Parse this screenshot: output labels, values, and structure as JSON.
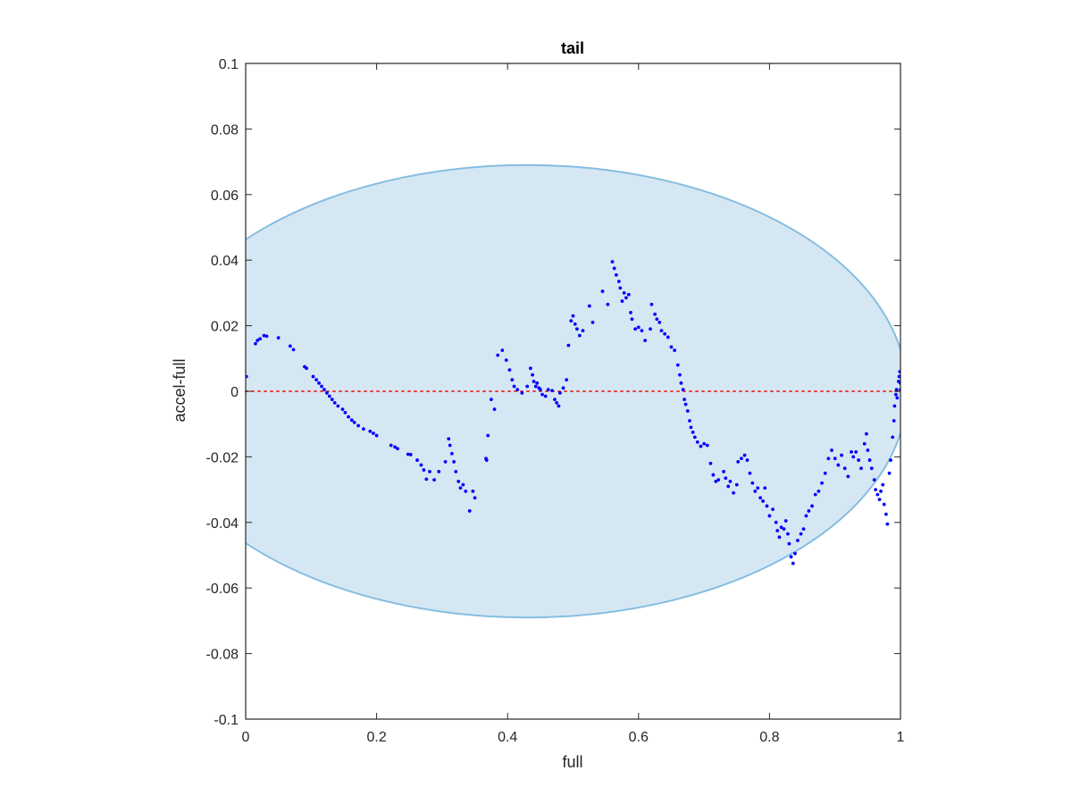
{
  "chart_data": {
    "type": "scatter",
    "title": "tail",
    "xlabel": "full",
    "ylabel": "accel-full",
    "xlim": [
      0,
      1
    ],
    "ylim": [
      -0.1,
      0.1
    ],
    "x_ticks": [
      0,
      0.2,
      0.4,
      0.6,
      0.8,
      1
    ],
    "x_tick_labels": [
      "0",
      "0.2",
      "0.4",
      "0.6",
      "0.8",
      "1"
    ],
    "y_ticks": [
      -0.1,
      -0.08,
      -0.06,
      -0.04,
      -0.02,
      0,
      0.02,
      0.04,
      0.06,
      0.08,
      0.1
    ],
    "y_tick_labels": [
      "-0.1",
      "-0.08",
      "-0.06",
      "-0.04",
      "-0.02",
      "0",
      "0.02",
      "0.04",
      "0.06",
      "0.08",
      "0.1"
    ],
    "grid": false,
    "reference_line": {
      "y": 0,
      "style": "dotted",
      "color": "#e8413a"
    },
    "ellipse": {
      "cx": 0.43,
      "cy": 0,
      "rx": 0.58,
      "ry": 0.069,
      "fill": "#d6e7f4",
      "stroke": "#85bde0"
    },
    "series": [
      {
        "color": "#0000ff",
        "points": [
          [
            0.001,
            0.0045
          ],
          [
            0.015,
            0.0145
          ],
          [
            0.018,
            0.0155
          ],
          [
            0.022,
            0.016
          ],
          [
            0.028,
            0.017
          ],
          [
            0.032,
            0.0168
          ],
          [
            0.05,
            0.0163
          ],
          [
            0.068,
            0.0138
          ],
          [
            0.073,
            0.0127
          ],
          [
            0.09,
            0.0075
          ],
          [
            0.093,
            0.007
          ],
          [
            0.103,
            0.0045
          ],
          [
            0.108,
            0.0035
          ],
          [
            0.112,
            0.0025
          ],
          [
            0.116,
            0.0015
          ],
          [
            0.12,
            0.0005
          ],
          [
            0.124,
            -0.0005
          ],
          [
            0.128,
            -0.0015
          ],
          [
            0.132,
            -0.0025
          ],
          [
            0.136,
            -0.0035
          ],
          [
            0.141,
            -0.0045
          ],
          [
            0.148,
            -0.0055
          ],
          [
            0.152,
            -0.0065
          ],
          [
            0.157,
            -0.0078
          ],
          [
            0.162,
            -0.0088
          ],
          [
            0.166,
            -0.0095
          ],
          [
            0.172,
            -0.0105
          ],
          [
            0.18,
            -0.0115
          ],
          [
            0.19,
            -0.0122
          ],
          [
            0.195,
            -0.0128
          ],
          [
            0.2,
            -0.0135
          ],
          [
            0.222,
            -0.0165
          ],
          [
            0.228,
            -0.017
          ],
          [
            0.232,
            -0.0175
          ],
          [
            0.248,
            -0.0192
          ],
          [
            0.252,
            -0.0193
          ],
          [
            0.262,
            -0.021
          ],
          [
            0.268,
            -0.0225
          ],
          [
            0.272,
            -0.024
          ],
          [
            0.276,
            -0.0268
          ],
          [
            0.281,
            -0.0245
          ],
          [
            0.288,
            -0.027
          ],
          [
            0.295,
            -0.0245
          ],
          [
            0.305,
            -0.0215
          ],
          [
            0.31,
            -0.0145
          ],
          [
            0.312,
            -0.0165
          ],
          [
            0.315,
            -0.019
          ],
          [
            0.318,
            -0.0215
          ],
          [
            0.321,
            -0.0245
          ],
          [
            0.325,
            -0.0275
          ],
          [
            0.328,
            -0.0295
          ],
          [
            0.332,
            -0.0285
          ],
          [
            0.336,
            -0.0305
          ],
          [
            0.342,
            -0.0365
          ],
          [
            0.347,
            -0.0305
          ],
          [
            0.35,
            -0.0325
          ],
          [
            0.367,
            -0.0205
          ],
          [
            0.368,
            -0.021
          ],
          [
            0.37,
            -0.0135
          ],
          [
            0.375,
            -0.0025
          ],
          [
            0.38,
            -0.0055
          ],
          [
            0.385,
            0.011
          ],
          [
            0.392,
            0.0125
          ],
          [
            0.398,
            0.0095
          ],
          [
            0.403,
            0.0065
          ],
          [
            0.407,
            0.0035
          ],
          [
            0.41,
            0.0015
          ],
          [
            0.415,
            0.0005
          ],
          [
            0.422,
            -0.0005
          ],
          [
            0.43,
            0.0015
          ],
          [
            0.435,
            0.007
          ],
          [
            0.438,
            0.005
          ],
          [
            0.44,
            0.003
          ],
          [
            0.443,
            0.0015
          ],
          [
            0.445,
            0.0025
          ],
          [
            0.448,
            0.001
          ],
          [
            0.45,
            0.0005
          ],
          [
            0.453,
            -0.001
          ],
          [
            0.458,
            -0.0015
          ],
          [
            0.462,
            0.0005
          ],
          [
            0.468,
            0.0002
          ],
          [
            0.472,
            -0.0025
          ],
          [
            0.475,
            -0.0035
          ],
          [
            0.478,
            -0.0045
          ],
          [
            0.48,
            -0.0005
          ],
          [
            0.485,
            0.001
          ],
          [
            0.49,
            0.0035
          ],
          [
            0.493,
            0.014
          ],
          [
            0.497,
            0.0215
          ],
          [
            0.5,
            0.023
          ],
          [
            0.503,
            0.0205
          ],
          [
            0.506,
            0.019
          ],
          [
            0.51,
            0.017
          ],
          [
            0.515,
            0.0185
          ],
          [
            0.525,
            0.026
          ],
          [
            0.53,
            0.021
          ],
          [
            0.545,
            0.0305
          ],
          [
            0.553,
            0.0265
          ],
          [
            0.56,
            0.0395
          ],
          [
            0.563,
            0.0375
          ],
          [
            0.566,
            0.0355
          ],
          [
            0.57,
            0.0335
          ],
          [
            0.572,
            0.0315
          ],
          [
            0.575,
            0.0275
          ],
          [
            0.578,
            0.03
          ],
          [
            0.581,
            0.0285
          ],
          [
            0.585,
            0.0295
          ],
          [
            0.588,
            0.024
          ],
          [
            0.59,
            0.022
          ],
          [
            0.595,
            0.019
          ],
          [
            0.6,
            0.0195
          ],
          [
            0.605,
            0.0185
          ],
          [
            0.61,
            0.0155
          ],
          [
            0.618,
            0.019
          ],
          [
            0.62,
            0.0265
          ],
          [
            0.625,
            0.0235
          ],
          [
            0.628,
            0.022
          ],
          [
            0.632,
            0.021
          ],
          [
            0.635,
            0.0185
          ],
          [
            0.64,
            0.0175
          ],
          [
            0.645,
            0.0165
          ],
          [
            0.65,
            0.0135
          ],
          [
            0.655,
            0.0125
          ],
          [
            0.66,
            0.008
          ],
          [
            0.663,
            0.005
          ],
          [
            0.665,
            0.0025
          ],
          [
            0.668,
            0.0005
          ],
          [
            0.67,
            -0.0025
          ],
          [
            0.672,
            -0.004
          ],
          [
            0.675,
            -0.006
          ],
          [
            0.678,
            -0.009
          ],
          [
            0.68,
            -0.011
          ],
          [
            0.683,
            -0.0125
          ],
          [
            0.686,
            -0.014
          ],
          [
            0.69,
            -0.0155
          ],
          [
            0.695,
            -0.0168
          ],
          [
            0.7,
            -0.016
          ],
          [
            0.705,
            -0.0165
          ],
          [
            0.71,
            -0.022
          ],
          [
            0.714,
            -0.0255
          ],
          [
            0.718,
            -0.0275
          ],
          [
            0.722,
            -0.027
          ],
          [
            0.73,
            -0.0245
          ],
          [
            0.733,
            -0.0265
          ],
          [
            0.737,
            -0.029
          ],
          [
            0.74,
            -0.0275
          ],
          [
            0.745,
            -0.031
          ],
          [
            0.75,
            -0.0285
          ],
          [
            0.752,
            -0.0215
          ],
          [
            0.757,
            -0.0205
          ],
          [
            0.762,
            -0.0195
          ],
          [
            0.766,
            -0.021
          ],
          [
            0.77,
            -0.025
          ],
          [
            0.774,
            -0.028
          ],
          [
            0.778,
            -0.0305
          ],
          [
            0.782,
            -0.0295
          ],
          [
            0.786,
            -0.0325
          ],
          [
            0.79,
            -0.0335
          ],
          [
            0.793,
            -0.0295
          ],
          [
            0.796,
            -0.035
          ],
          [
            0.8,
            -0.038
          ],
          [
            0.805,
            -0.036
          ],
          [
            0.81,
            -0.04
          ],
          [
            0.812,
            -0.0425
          ],
          [
            0.815,
            -0.0445
          ],
          [
            0.818,
            -0.0415
          ],
          [
            0.822,
            -0.042
          ],
          [
            0.825,
            -0.0395
          ],
          [
            0.828,
            -0.0435
          ],
          [
            0.83,
            -0.0465
          ],
          [
            0.833,
            -0.0505
          ],
          [
            0.836,
            -0.0525
          ],
          [
            0.839,
            -0.0495
          ],
          [
            0.843,
            -0.0455
          ],
          [
            0.848,
            -0.0435
          ],
          [
            0.852,
            -0.042
          ],
          [
            0.856,
            -0.038
          ],
          [
            0.86,
            -0.0365
          ],
          [
            0.865,
            -0.035
          ],
          [
            0.87,
            -0.0315
          ],
          [
            0.875,
            -0.0305
          ],
          [
            0.88,
            -0.028
          ],
          [
            0.885,
            -0.025
          ],
          [
            0.89,
            -0.0205
          ],
          [
            0.895,
            -0.018
          ],
          [
            0.9,
            -0.0205
          ],
          [
            0.905,
            -0.0225
          ],
          [
            0.91,
            -0.0195
          ],
          [
            0.915,
            -0.0235
          ],
          [
            0.92,
            -0.026
          ],
          [
            0.925,
            -0.0185
          ],
          [
            0.928,
            -0.02
          ],
          [
            0.932,
            -0.0185
          ],
          [
            0.936,
            -0.021
          ],
          [
            0.94,
            -0.0235
          ],
          [
            0.945,
            -0.016
          ],
          [
            0.948,
            -0.013
          ],
          [
            0.95,
            -0.018
          ],
          [
            0.953,
            -0.021
          ],
          [
            0.956,
            -0.0235
          ],
          [
            0.96,
            -0.027
          ],
          [
            0.962,
            -0.03
          ],
          [
            0.965,
            -0.0315
          ],
          [
            0.968,
            -0.033
          ],
          [
            0.97,
            -0.0305
          ],
          [
            0.973,
            -0.0285
          ],
          [
            0.975,
            -0.0345
          ],
          [
            0.978,
            -0.0375
          ],
          [
            0.98,
            -0.0405
          ],
          [
            0.983,
            -0.025
          ],
          [
            0.985,
            -0.021
          ],
          [
            0.988,
            -0.014
          ],
          [
            0.99,
            -0.009
          ],
          [
            0.991,
            -0.0045
          ],
          [
            0.993,
            -0.001
          ],
          [
            0.994,
            0.0005
          ],
          [
            0.995,
            -0.002
          ],
          [
            0.997,
            0.003
          ],
          [
            0.998,
            0.0045
          ],
          [
            0.999,
            0.006
          ],
          [
            1.0,
            0.0025
          ],
          [
            1.0,
            0.0005
          ]
        ]
      }
    ]
  }
}
